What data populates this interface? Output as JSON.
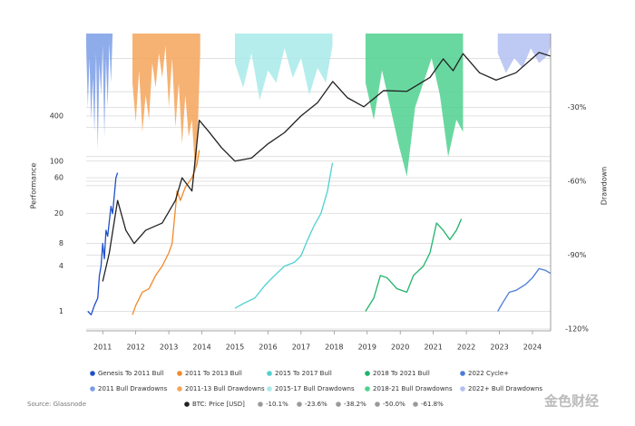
{
  "chart_data": {
    "type": "line",
    "y_label": "Performance",
    "y2_label": "Drawdown",
    "log_y": true,
    "grid": true,
    "xlim": [
      2010.5,
      2024.55
    ],
    "xticks": [
      2011,
      2012,
      2013,
      2014,
      2015,
      2016,
      2017,
      2018,
      2019,
      2020,
      2021,
      2022,
      2023,
      2024
    ],
    "ylim": [
      0.55,
      5000
    ],
    "yticks": [
      1,
      4,
      8,
      20,
      60,
      100,
      400
    ],
    "y2lim": [
      -120,
      0
    ],
    "y2ticks": [
      {
        "value": -30,
        "label": "-30%"
      },
      {
        "value": -60,
        "label": "-60%"
      },
      {
        "value": -90,
        "label": "-90%"
      },
      {
        "value": -120,
        "label": "-120%"
      }
    ],
    "series": [
      {
        "name": "Genesis To 2011 Bull",
        "color": "#1f4fc9",
        "x": [
          2010.55,
          2010.65,
          2010.75,
          2010.85,
          2010.9,
          2010.95,
          2011.0,
          2011.05,
          2011.1,
          2011.15,
          2011.25,
          2011.3,
          2011.4,
          2011.45
        ],
        "values": [
          1,
          0.9,
          1.2,
          1.5,
          3,
          4,
          8,
          5,
          12,
          10,
          25,
          20,
          60,
          70
        ]
      },
      {
        "name": "2011 To 2013 Bull",
        "color": "#f08a2b",
        "x": [
          2011.9,
          2012.0,
          2012.2,
          2012.4,
          2012.6,
          2012.8,
          2013.0,
          2013.1,
          2013.25,
          2013.35,
          2013.5,
          2013.7,
          2013.85,
          2013.92
        ],
        "values": [
          0.9,
          1.2,
          1.8,
          2,
          3,
          4,
          6,
          8,
          40,
          30,
          45,
          60,
          90,
          140
        ]
      },
      {
        "name": "2015 To 2017 Bull",
        "color": "#4fd1d1",
        "x": [
          2015.0,
          2015.3,
          2015.6,
          2015.9,
          2016.2,
          2016.5,
          2016.8,
          2017.0,
          2017.2,
          2017.4,
          2017.6,
          2017.8,
          2017.95
        ],
        "values": [
          1.1,
          1.3,
          1.5,
          2.2,
          3,
          4,
          4.5,
          5.5,
          9,
          14,
          20,
          40,
          95
        ]
      },
      {
        "name": "2018 To 2021 Bull",
        "color": "#1fb36b",
        "x": [
          2018.95,
          2019.2,
          2019.4,
          2019.6,
          2019.9,
          2020.2,
          2020.4,
          2020.7,
          2020.9,
          2021.1,
          2021.3,
          2021.5,
          2021.7,
          2021.85
        ],
        "values": [
          1,
          1.5,
          3,
          2.8,
          2,
          1.8,
          3,
          4,
          6,
          15,
          12,
          9,
          12,
          17
        ]
      },
      {
        "name": "2022 Cycle+",
        "color": "#4a7bd9",
        "x": [
          2022.95,
          2023.1,
          2023.3,
          2023.5,
          2023.8,
          2024.0,
          2024.2,
          2024.4,
          2024.55
        ],
        "values": [
          1,
          1.3,
          1.8,
          1.9,
          2.3,
          2.8,
          3.7,
          3.5,
          3.2
        ]
      },
      {
        "name": "2011 Bull Drawdowns",
        "color": "#7b9ee6",
        "style": "area",
        "axis": "y2",
        "x": [
          2010.5,
          2010.55,
          2010.6,
          2010.65,
          2010.7,
          2010.75,
          2010.8,
          2010.85,
          2010.9,
          2010.95,
          2011.0,
          2011.05,
          2011.1,
          2011.15,
          2011.2,
          2011.25,
          2011.3
        ],
        "values": [
          -5,
          -30,
          -10,
          -35,
          -18,
          -40,
          -8,
          -47,
          -12,
          -25,
          -5,
          -42,
          -10,
          -30,
          -4,
          -20,
          0
        ]
      },
      {
        "name": "2011-13 Bull Drawdowns",
        "color": "#f5a55a",
        "style": "area",
        "axis": "y2",
        "x": [
          2011.9,
          2012.0,
          2012.1,
          2012.2,
          2012.3,
          2012.4,
          2012.5,
          2012.6,
          2012.7,
          2012.8,
          2012.9,
          2013.0,
          2013.1,
          2013.2,
          2013.3,
          2013.4,
          2013.5,
          2013.6,
          2013.7,
          2013.8,
          2013.85,
          2013.95
        ],
        "values": [
          -20,
          -36,
          -15,
          -40,
          -25,
          -35,
          -12,
          -22,
          -8,
          -18,
          -5,
          -30,
          -10,
          -38,
          -20,
          -45,
          -25,
          -42,
          -35,
          -57,
          -50,
          -8
        ]
      },
      {
        "name": "2015-17 Bull Drawdowns",
        "color": "#a8eaea",
        "style": "area",
        "axis": "y2",
        "x": [
          2015.0,
          2015.25,
          2015.5,
          2015.75,
          2016.0,
          2016.25,
          2016.5,
          2016.75,
          2017.0,
          2017.25,
          2017.5,
          2017.75,
          2017.95
        ],
        "values": [
          -12,
          -22,
          -8,
          -27,
          -15,
          -20,
          -6,
          -18,
          -10,
          -25,
          -14,
          -20,
          -5
        ]
      },
      {
        "name": "2018-21 Bull Drawdowns",
        "color": "#4fd18f",
        "style": "area",
        "axis": "y2",
        "x": [
          2018.95,
          2019.2,
          2019.45,
          2019.7,
          2019.95,
          2020.2,
          2020.45,
          2020.7,
          2020.95,
          2021.2,
          2021.45,
          2021.7,
          2021.9
        ],
        "values": [
          -20,
          -35,
          -15,
          -30,
          -45,
          -58,
          -30,
          -20,
          -10,
          -25,
          -50,
          -35,
          -40
        ]
      },
      {
        "name": "2022+ Bull Drawdowns",
        "color": "#b3bff2",
        "style": "area",
        "axis": "y2",
        "x": [
          2022.95,
          2023.2,
          2023.45,
          2023.7,
          2023.95,
          2024.2,
          2024.45,
          2024.55
        ],
        "values": [
          -8,
          -16,
          -10,
          -14,
          -6,
          -12,
          -9,
          -5
        ]
      },
      {
        "name": "BTC: Price [USD]",
        "color": "#222222",
        "x": [
          2011.0,
          2011.2,
          2011.45,
          2011.7,
          2011.95,
          2012.3,
          2012.8,
          2013.2,
          2013.4,
          2013.7,
          2013.92,
          2014.2,
          2014.6,
          2015.0,
          2015.5,
          2016.0,
          2016.5,
          2017.0,
          2017.5,
          2017.96,
          2018.4,
          2018.9,
          2019.5,
          2020.2,
          2020.9,
          2021.3,
          2021.6,
          2021.9,
          2022.4,
          2022.9,
          2023.5,
          2024.2,
          2024.55
        ],
        "values": [
          2.5,
          6,
          30,
          12,
          8,
          12,
          15,
          30,
          60,
          40,
          350,
          250,
          150,
          100,
          110,
          170,
          240,
          400,
          600,
          1150,
          700,
          530,
          870,
          850,
          1300,
          2300,
          1600,
          2700,
          1500,
          1200,
          1500,
          2800,
          2500
        ]
      }
    ],
    "levels": [
      {
        "name": "-10.1%",
        "value": -10.1,
        "color": "#9a9a9a"
      },
      {
        "name": "-23.6%",
        "value": -23.6,
        "color": "#9a9a9a"
      },
      {
        "name": "-38.2%",
        "value": -38.2,
        "color": "#9a9a9a"
      },
      {
        "name": "-50.0%",
        "value": -50.0,
        "color": "#9a9a9a"
      },
      {
        "name": "-61.8%",
        "value": -61.8,
        "color": "#9a9a9a"
      }
    ],
    "source": "Source: Glassnode",
    "watermark": "金色财经"
  }
}
